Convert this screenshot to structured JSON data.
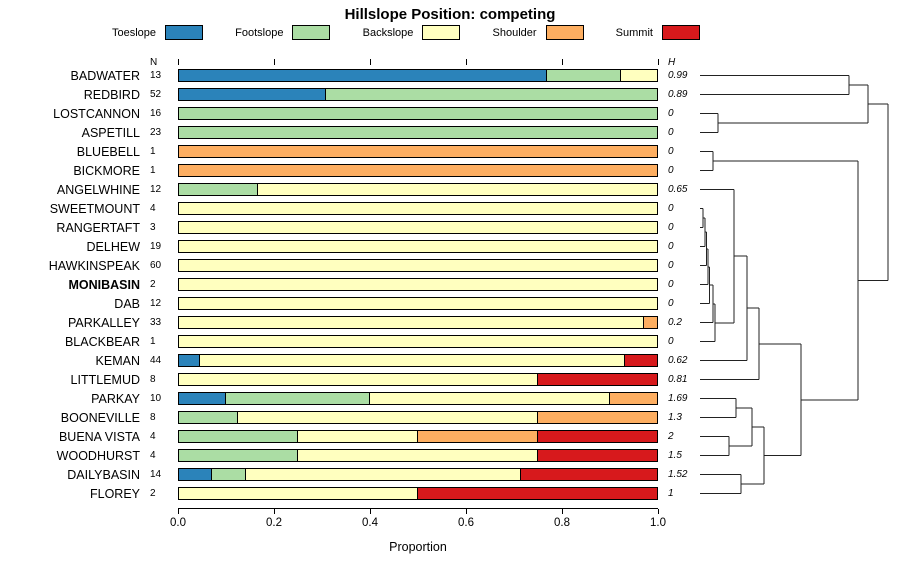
{
  "title": "Hillslope Position: competing",
  "legend": [
    {
      "label": "Toeslope",
      "color": "#2B83BA"
    },
    {
      "label": "Footslope",
      "color": "#ABDDA4"
    },
    {
      "label": "Backslope",
      "color": "#FFFFBF"
    },
    {
      "label": "Shoulder",
      "color": "#FDAE61"
    },
    {
      "label": "Summit",
      "color": "#D7191C"
    }
  ],
  "columns": {
    "n_header": "N",
    "h_header": "H"
  },
  "x_axis": {
    "label": "Proportion",
    "ticks": [
      "0.0",
      "0.2",
      "0.4",
      "0.6",
      "0.8",
      "1.0"
    ]
  },
  "chart_data": {
    "type": "bar",
    "stacked": true,
    "orientation": "horizontal",
    "title": "Hillslope Position: competing",
    "xlabel": "Proportion",
    "xlim": [
      0,
      1
    ],
    "grid": false,
    "legend_position": "top",
    "series_labels": [
      "Toeslope",
      "Footslope",
      "Backslope",
      "Shoulder",
      "Summit"
    ],
    "series_colors": [
      "#2B83BA",
      "#ABDDA4",
      "#FFFFBF",
      "#FDAE61",
      "#D7191C"
    ],
    "rows": [
      {
        "site": "BADWATER",
        "n": 13,
        "h": "0.99",
        "bold": false,
        "values": [
          0.769,
          0.154,
          0.077,
          0,
          0
        ]
      },
      {
        "site": "REDBIRD",
        "n": 52,
        "h": "0.89",
        "bold": false,
        "values": [
          0.308,
          0.692,
          0,
          0,
          0
        ]
      },
      {
        "site": "LOSTCANNON",
        "n": 16,
        "h": "0",
        "bold": false,
        "values": [
          0,
          1,
          0,
          0,
          0
        ]
      },
      {
        "site": "ASPETILL",
        "n": 23,
        "h": "0",
        "bold": false,
        "values": [
          0,
          1,
          0,
          0,
          0
        ]
      },
      {
        "site": "BLUEBELL",
        "n": 1,
        "h": "0",
        "bold": false,
        "values": [
          0,
          0,
          0,
          1,
          0
        ]
      },
      {
        "site": "BICKMORE",
        "n": 1,
        "h": "0",
        "bold": false,
        "values": [
          0,
          0,
          0,
          1,
          0
        ]
      },
      {
        "site": "ANGELWHINE",
        "n": 12,
        "h": "0.65",
        "bold": false,
        "values": [
          0,
          0.167,
          0.833,
          0,
          0
        ]
      },
      {
        "site": "SWEETMOUNT",
        "n": 4,
        "h": "0",
        "bold": false,
        "values": [
          0,
          0,
          1,
          0,
          0
        ]
      },
      {
        "site": "RANGERTAFT",
        "n": 3,
        "h": "0",
        "bold": false,
        "values": [
          0,
          0,
          1,
          0,
          0
        ]
      },
      {
        "site": "DELHEW",
        "n": 19,
        "h": "0",
        "bold": false,
        "values": [
          0,
          0,
          1,
          0,
          0
        ]
      },
      {
        "site": "HAWKINSPEAK",
        "n": 60,
        "h": "0",
        "bold": false,
        "values": [
          0,
          0,
          1,
          0,
          0
        ]
      },
      {
        "site": "MONIBASIN",
        "n": 2,
        "h": "0",
        "bold": true,
        "values": [
          0,
          0,
          1,
          0,
          0
        ]
      },
      {
        "site": "DAB",
        "n": 12,
        "h": "0",
        "bold": false,
        "values": [
          0,
          0,
          1,
          0,
          0
        ]
      },
      {
        "site": "PARKALLEY",
        "n": 33,
        "h": "0.2",
        "bold": false,
        "values": [
          0,
          0,
          0.97,
          0.03,
          0
        ]
      },
      {
        "site": "BLACKBEAR",
        "n": 1,
        "h": "0",
        "bold": false,
        "values": [
          0,
          0,
          1,
          0,
          0
        ]
      },
      {
        "site": "KEMAN",
        "n": 44,
        "h": "0.62",
        "bold": false,
        "values": [
          0.045,
          0,
          0.886,
          0,
          0.069
        ]
      },
      {
        "site": "LITTLEMUD",
        "n": 8,
        "h": "0.81",
        "bold": false,
        "values": [
          0,
          0,
          0.75,
          0,
          0.25
        ]
      },
      {
        "site": "PARKAY",
        "n": 10,
        "h": "1.69",
        "bold": false,
        "values": [
          0.1,
          0.3,
          0.5,
          0.1,
          0
        ]
      },
      {
        "site": "BOONEVILLE",
        "n": 8,
        "h": "1.3",
        "bold": false,
        "values": [
          0,
          0.125,
          0.625,
          0.25,
          0
        ]
      },
      {
        "site": "BUENA VISTA",
        "n": 4,
        "h": "2",
        "bold": false,
        "values": [
          0,
          0.25,
          0.25,
          0.25,
          0.25
        ]
      },
      {
        "site": "WOODHURST",
        "n": 4,
        "h": "1.5",
        "bold": false,
        "values": [
          0,
          0.25,
          0.5,
          0,
          0.25
        ]
      },
      {
        "site": "DAILYBASIN",
        "n": 14,
        "h": "1.52",
        "bold": false,
        "values": [
          0.071,
          0.071,
          0.572,
          0,
          0.286
        ]
      },
      {
        "site": "FLOREY",
        "n": 2,
        "h": "1",
        "bold": false,
        "values": [
          0,
          0,
          0.5,
          0,
          0.5
        ]
      }
    ]
  }
}
